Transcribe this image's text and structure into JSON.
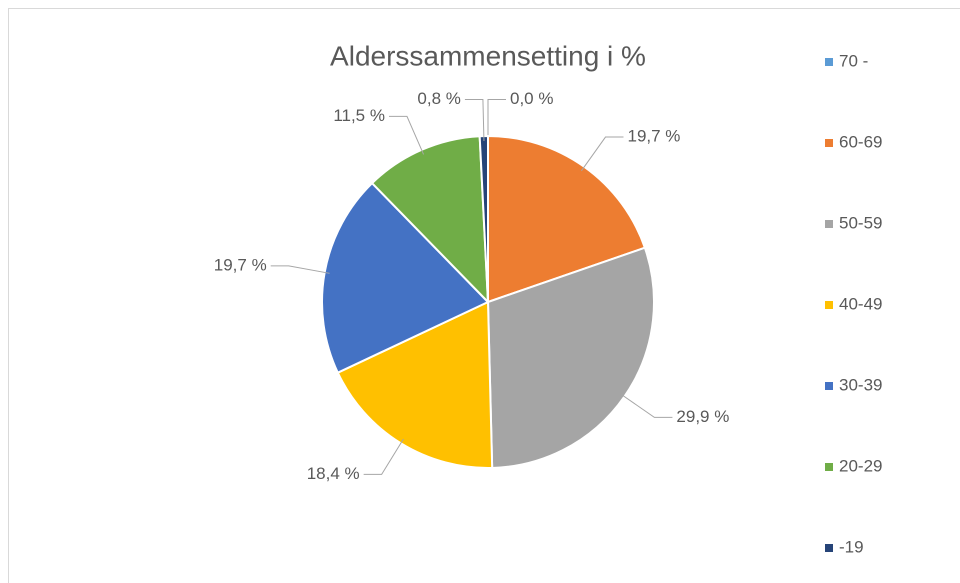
{
  "chart_data": {
    "type": "pie",
    "title": "Alderssammensetting i %",
    "categories": [
      "70 -",
      "60-69",
      "50-59",
      "40-49",
      "30-39",
      "20-29",
      "-19"
    ],
    "values": [
      0.0,
      19.7,
      29.9,
      18.4,
      19.7,
      11.5,
      0.8
    ],
    "value_labels": [
      "0,0 %",
      "19,7 %",
      "29,9 %",
      "18,4 %",
      "19,7 %",
      "11,5 %",
      "0,8 %"
    ],
    "colors": [
      "#5b9bd5",
      "#ed7d31",
      "#a5a5a5",
      "#ffc000",
      "#4472c4",
      "#70ad47",
      "#264478"
    ],
    "legend": "right"
  }
}
